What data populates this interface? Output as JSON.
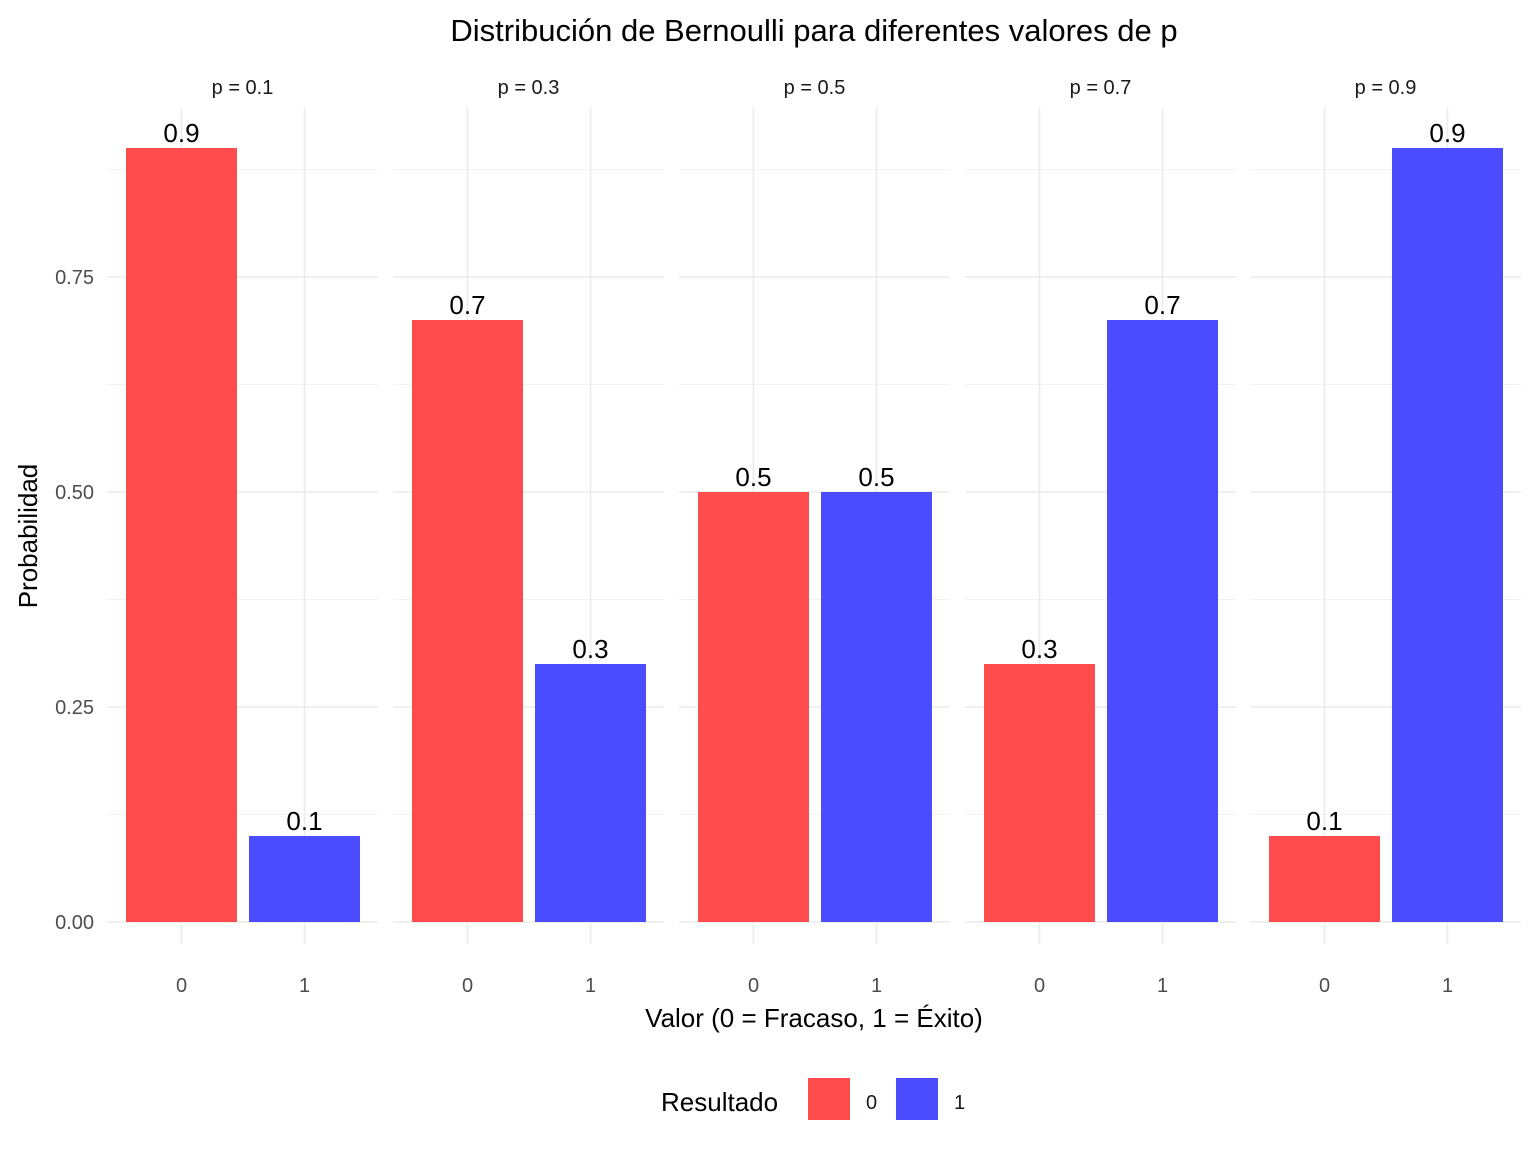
{
  "chart_data": {
    "type": "bar",
    "title": "Distribución de Bernoulli para diferentes valores de p",
    "xlabel": "Valor (0 = Fracaso, 1 = Éxito)",
    "ylabel": "Probabilidad",
    "ylim": [
      0,
      0.945
    ],
    "yticks": [
      0,
      0.25,
      0.5,
      0.75
    ],
    "ytick_labels": [
      "0.00",
      "0.25",
      "0.50",
      "0.75"
    ],
    "grid": true,
    "categories": [
      "0",
      "1"
    ],
    "colors": {
      "0": "#ff4c4c",
      "1": "#4c4cff"
    },
    "panels": [
      {
        "label": "p = 0.1",
        "values": [
          0.9,
          0.1
        ],
        "data_labels": [
          "0.9",
          "0.1"
        ]
      },
      {
        "label": "p = 0.3",
        "values": [
          0.7,
          0.3
        ],
        "data_labels": [
          "0.7",
          "0.3"
        ]
      },
      {
        "label": "p = 0.5",
        "values": [
          0.5,
          0.5
        ],
        "data_labels": [
          "0.5",
          "0.5"
        ]
      },
      {
        "label": "p = 0.7",
        "values": [
          0.3,
          0.7
        ],
        "data_labels": [
          "0.3",
          "0.7"
        ]
      },
      {
        "label": "p = 0.9",
        "values": [
          0.1,
          0.9
        ],
        "data_labels": [
          "0.1",
          "0.9"
        ]
      }
    ],
    "legend": {
      "title": "Resultado",
      "position": "bottom",
      "items": [
        {
          "label": "0",
          "color": "#ff4c4c"
        },
        {
          "label": "1",
          "color": "#4c4cff"
        }
      ]
    }
  }
}
